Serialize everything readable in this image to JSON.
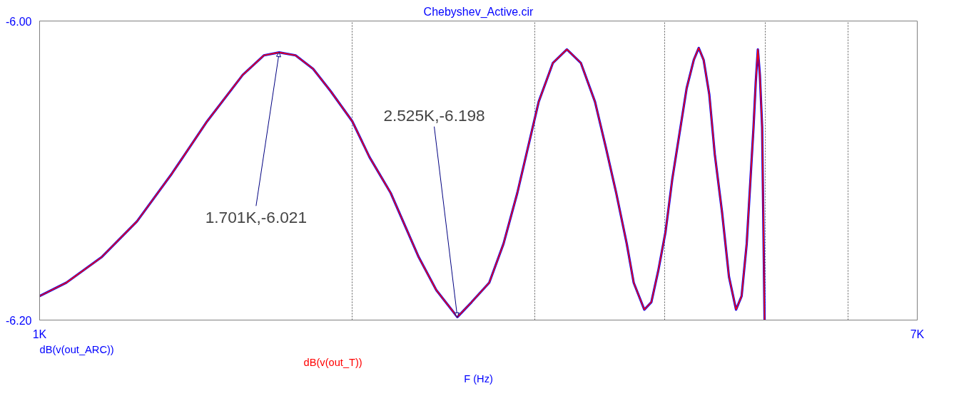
{
  "chart_data": {
    "type": "line",
    "title": "Chebyshev_Active.cir",
    "xlabel": "F (Hz)",
    "log": "x",
    "grid": "x",
    "xlim": [
      1000,
      7000
    ],
    "xticks": [
      {
        "value": 1000,
        "label": "1K"
      },
      {
        "value": 2000,
        "label": null
      },
      {
        "value": 3000,
        "label": null
      },
      {
        "value": 4000,
        "label": null
      },
      {
        "value": 5000,
        "label": null
      },
      {
        "value": 6000,
        "label": null
      },
      {
        "value": 7000,
        "label": "7K"
      }
    ],
    "ylim": [
      -6.2,
      -6.0
    ],
    "yticks": [
      {
        "value": -6.0,
        "label": "-6.00"
      },
      {
        "value": -6.2,
        "label": "-6.20"
      }
    ],
    "x": [
      1000,
      1061,
      1147,
      1241,
      1341,
      1450,
      1569,
      1644,
      1701,
      1764,
      1834,
      1907,
      2000,
      2078,
      2178,
      2318,
      2410,
      2525,
      2606,
      2710,
      2797,
      2884,
      3024,
      3121,
      3219,
      3320,
      3426,
      3508,
      3591,
      3676,
      3733,
      3822,
      3882,
      3942,
      4006,
      4066,
      4198,
      4265,
      4312,
      4359,
      4414,
      4468,
      4541,
      4611,
      4684,
      4742,
      4796,
      4869,
      4893,
      4916,
      4938,
      4963,
      4990
    ],
    "series": [
      {
        "name": "dB(v(out_ARC))",
        "color": "#0000ff",
        "values": [
          -6.184,
          -6.175,
          -6.158,
          -6.134,
          -6.102,
          -6.067,
          -6.036,
          -6.023,
          -6.021,
          -6.023,
          -6.032,
          -6.047,
          -6.067,
          -6.091,
          -6.115,
          -6.158,
          -6.18,
          -6.198,
          -6.188,
          -6.175,
          -6.149,
          -6.115,
          -6.054,
          -6.028,
          -6.019,
          -6.028,
          -6.054,
          -6.084,
          -6.115,
          -6.149,
          -6.175,
          -6.193,
          -6.188,
          -6.167,
          -6.141,
          -6.106,
          -6.045,
          -6.026,
          -6.018,
          -6.026,
          -6.049,
          -6.089,
          -6.128,
          -6.171,
          -6.193,
          -6.184,
          -6.149,
          -6.071,
          -6.041,
          -6.019,
          -6.036,
          -6.071,
          -6.2
        ]
      },
      {
        "name": "dB(v(out_T))",
        "color": "#ff0000",
        "values": [
          -6.184,
          -6.175,
          -6.158,
          -6.134,
          -6.102,
          -6.067,
          -6.036,
          -6.023,
          -6.021,
          -6.023,
          -6.032,
          -6.047,
          -6.067,
          -6.091,
          -6.115,
          -6.158,
          -6.18,
          -6.198,
          -6.188,
          -6.175,
          -6.149,
          -6.115,
          -6.054,
          -6.028,
          -6.019,
          -6.028,
          -6.054,
          -6.084,
          -6.115,
          -6.149,
          -6.175,
          -6.193,
          -6.188,
          -6.167,
          -6.141,
          -6.106,
          -6.045,
          -6.026,
          -6.018,
          -6.026,
          -6.049,
          -6.089,
          -6.128,
          -6.171,
          -6.193,
          -6.184,
          -6.149,
          -6.071,
          -6.041,
          -6.019,
          -6.036,
          -6.071,
          -6.2
        ]
      }
    ],
    "annotations": [
      {
        "text": "1.701K,-6.021",
        "x": 1701,
        "y": -6.021
      },
      {
        "text": "2.525K,-6.198",
        "x": 2525,
        "y": -6.198
      }
    ]
  }
}
